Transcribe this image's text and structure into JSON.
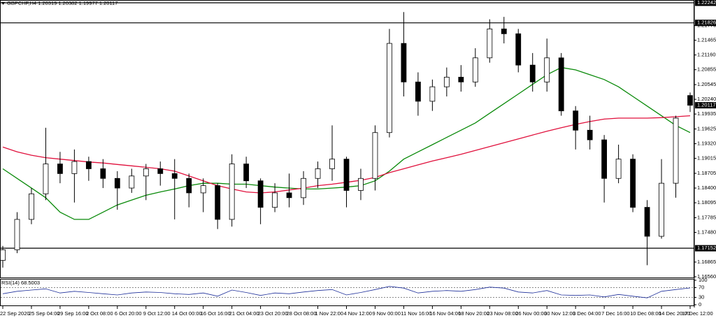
{
  "chart_data": {
    "type": "candlestick",
    "symbol": "GBPCHF,H4",
    "categories": [
      "22 Sep 2020",
      null,
      "25 Sep 04:00",
      null,
      "29 Sep 16:00",
      null,
      "2 Oct 08:00",
      null,
      "6 Oct 20:00",
      null,
      "9 Oct 12:00",
      null,
      "14 Oct 00:00",
      null,
      "16 Oct 16:00",
      null,
      "21 Oct 04:00",
      null,
      "23 Oct 20:00",
      null,
      "28 Oct 08:00",
      null,
      "1 Nov 22:00",
      null,
      "4 Nov 12:00",
      null,
      "9 Nov 00:00",
      null,
      "11 Nov 16:00",
      null,
      "16 Nov 04:00",
      null,
      "18 Nov 20:00",
      null,
      "23 Nov 08:00",
      null,
      "26 Nov 00:00",
      null,
      "30 Nov 12:00",
      null,
      "3 Dec 04:00",
      null,
      "7 Dec 16:00",
      null,
      "10 Dec 08:00",
      null,
      "14 Dec 20:00",
      null,
      "17 Dec 12:00"
    ],
    "open": [
      1.169,
      1.1712,
      1.1775,
      1.1828,
      1.189,
      1.187,
      1.1895,
      1.188,
      1.186,
      1.184,
      1.1865,
      1.188,
      1.187,
      1.186,
      1.183,
      1.1845,
      1.1775,
      1.189,
      1.1855,
      1.18,
      1.183,
      1.182,
      1.186,
      1.188,
      1.19,
      1.1835,
      1.186,
      1.1955,
      1.214,
      1.206,
      1.202,
      1.205,
      1.207,
      1.206,
      1.211,
      1.217,
      1.216,
      1.2095,
      1.206,
      1.211,
      1.2,
      1.196,
      1.194,
      1.186,
      1.19,
      1.18,
      1.174,
      1.185,
      1.20319
    ],
    "high": [
      1.172,
      1.179,
      1.184,
      1.1965,
      1.1915,
      1.192,
      1.1905,
      1.19,
      1.1875,
      1.188,
      1.189,
      1.1895,
      1.19,
      1.187,
      1.186,
      1.185,
      1.191,
      1.1905,
      1.186,
      1.185,
      1.187,
      1.1875,
      1.1895,
      1.197,
      1.1905,
      1.188,
      1.197,
      1.217,
      1.2205,
      1.208,
      1.2065,
      1.209,
      1.2095,
      1.213,
      1.219,
      1.2195,
      1.217,
      1.212,
      1.215,
      1.212,
      1.201,
      1.199,
      1.195,
      1.193,
      1.191,
      1.1815,
      1.19,
      1.199,
      1.20382
    ],
    "low": [
      1.1675,
      1.1705,
      1.1765,
      1.1815,
      1.185,
      1.181,
      1.1855,
      1.184,
      1.1795,
      1.183,
      1.1815,
      1.1845,
      1.1775,
      1.18,
      1.179,
      1.1755,
      1.176,
      1.184,
      1.1765,
      1.179,
      1.18,
      1.1805,
      1.184,
      1.1855,
      1.18,
      1.1815,
      1.1835,
      1.1945,
      1.203,
      1.199,
      1.2,
      1.203,
      1.204,
      1.205,
      1.21,
      1.214,
      1.208,
      1.204,
      1.204,
      1.199,
      1.192,
      1.192,
      1.181,
      1.185,
      1.179,
      1.168,
      1.1735,
      1.182,
      1.19977
    ],
    "close": [
      1.1712,
      1.1775,
      1.1828,
      1.189,
      1.187,
      1.1895,
      1.188,
      1.186,
      1.184,
      1.1865,
      1.188,
      1.187,
      1.186,
      1.183,
      1.1845,
      1.1775,
      1.189,
      1.1855,
      1.18,
      1.183,
      1.182,
      1.186,
      1.188,
      1.19,
      1.1835,
      1.186,
      1.1955,
      1.214,
      1.206,
      1.202,
      1.205,
      1.207,
      1.206,
      1.211,
      1.217,
      1.216,
      1.2095,
      1.206,
      1.211,
      1.2,
      1.196,
      1.194,
      1.186,
      1.19,
      1.18,
      1.174,
      1.185,
      1.1985,
      1.20117
    ],
    "up_color": "#ffffff",
    "down_color": "#000000",
    "candle_outline": "#000000",
    "overlays": [
      {
        "color": "#0a8a0a",
        "values": [
          1.188,
          1.186,
          1.184,
          1.182,
          1.179,
          1.1775,
          1.1775,
          1.179,
          1.1805,
          1.1815,
          1.1825,
          1.1832,
          1.1838,
          1.1845,
          1.185,
          1.185,
          1.1848,
          1.1848,
          1.1845,
          1.1842,
          1.184,
          1.1838,
          1.1838,
          1.184,
          1.1842,
          1.1845,
          1.1855,
          1.1875,
          1.19,
          1.1915,
          1.193,
          1.1945,
          1.196,
          1.1975,
          1.1995,
          1.2015,
          1.2035,
          1.2055,
          1.2075,
          1.209,
          1.2085,
          1.2075,
          1.2065,
          1.205,
          1.203,
          1.201,
          1.199,
          1.197,
          1.1955
        ]
      },
      {
        "color": "#e0103c",
        "values": [
          1.1925,
          1.1915,
          1.1908,
          1.1903,
          1.19,
          1.1897,
          1.1894,
          1.1892,
          1.1889,
          1.1886,
          1.1883,
          1.188,
          1.1875,
          1.1865,
          1.1855,
          1.1845,
          1.1838,
          1.1832,
          1.183,
          1.1832,
          1.1836,
          1.184,
          1.1845,
          1.1848,
          1.1852,
          1.1856,
          1.1862,
          1.1872,
          1.188,
          1.1888,
          1.1896,
          1.1903,
          1.191,
          1.1918,
          1.1926,
          1.1934,
          1.1942,
          1.195,
          1.1958,
          1.1965,
          1.1972,
          1.1978,
          1.1983,
          1.1985,
          1.1985,
          1.1985,
          1.1986,
          1.1988,
          1.199
        ]
      }
    ],
    "levels": [
      1.22242,
      1.21826,
      1.17152
    ],
    "ylim": [
      1.1656,
      1.22242
    ],
    "yticks": [
      {
        "value": 1.2177,
        "label": "1.21770"
      },
      1.21465,
      {
        "value": 1.2116,
        "label": "1.21160"
      },
      1.20855,
      1.20545,
      {
        "value": 1.2024,
        "label": "1.20240"
      },
      1.19935,
      1.19625,
      {
        "value": 1.1932,
        "label": "1.19320"
      },
      1.19015,
      1.18705,
      {
        "value": 1.184,
        "label": "1.18400"
      },
      1.18095,
      1.17785,
      {
        "value": 1.1748,
        "label": "1.17480"
      },
      1.16865,
      {
        "value": 1.1656,
        "label": "1.16560"
      }
    ],
    "rsi": {
      "label": "RSI(14)",
      "color": "#1e2f9a",
      "values": [
        45,
        55,
        60,
        65,
        48,
        55,
        50,
        45,
        40,
        48,
        52,
        50,
        45,
        42,
        48,
        35,
        60,
        50,
        38,
        48,
        45,
        52,
        58,
        62,
        40,
        50,
        62,
        75,
        68,
        48,
        55,
        58,
        55,
        62,
        72,
        68,
        52,
        48,
        58,
        40,
        38,
        40,
        32,
        42,
        35,
        28,
        55,
        62,
        68.5003
      ],
      "ylim": [
        0,
        100
      ],
      "yticks": [
        100,
        70,
        30,
        0
      ],
      "levels": [
        70,
        30
      ]
    }
  }
}
